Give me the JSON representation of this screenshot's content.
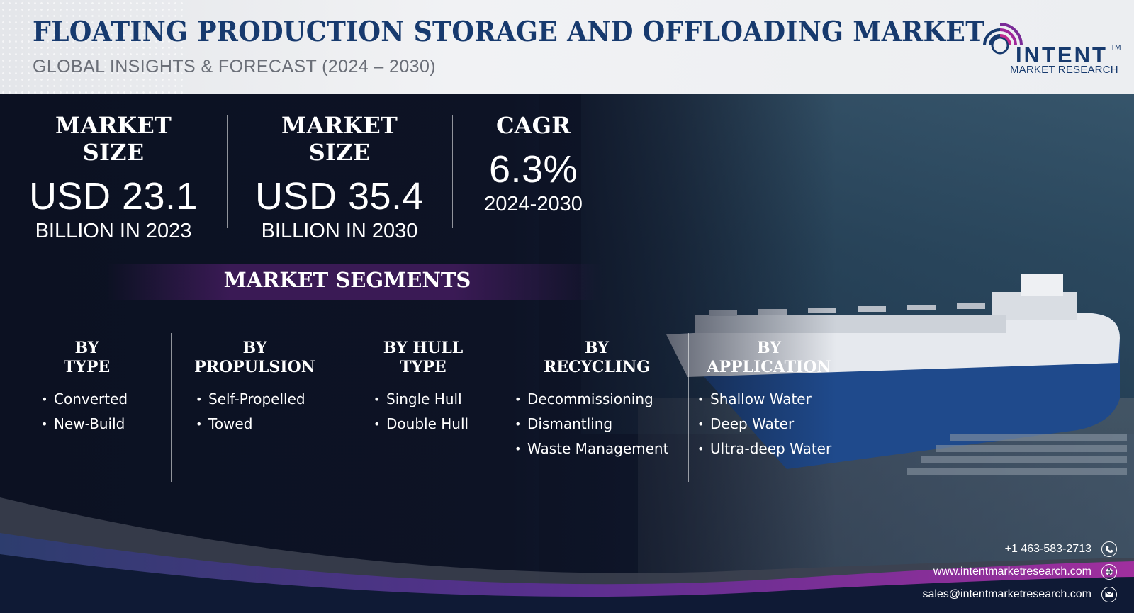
{
  "header": {
    "title": "FLOATING PRODUCTION STORAGE AND OFFLOADING MARKET",
    "subtitle": "GLOBAL INSIGHTS & FORECAST (2024 – 2030)"
  },
  "logo": {
    "name": "INTENT",
    "tm": "TM",
    "sub": "MARKET RESEARCH"
  },
  "stats": [
    {
      "label": "MARKET SIZE",
      "value": "USD 23.1",
      "note": "BILLION IN 2023"
    },
    {
      "label": "MARKET SIZE",
      "value": "USD 35.4",
      "note": "BILLION IN 2030"
    },
    {
      "label": "CAGR",
      "value": "6.3%",
      "note": "2024-2030"
    }
  ],
  "segments": {
    "title": "MARKET SEGMENTS",
    "columns": [
      {
        "heading": "BY\nTYPE",
        "items": [
          "Converted",
          "New-Build"
        ]
      },
      {
        "heading": "BY\nPROPULSION",
        "items": [
          "Self-Propelled",
          "Towed"
        ]
      },
      {
        "heading": "BY HULL\nTYPE",
        "items": [
          "Single Hull",
          "Double Hull"
        ]
      },
      {
        "heading": "BY\nRECYCLING",
        "items": [
          "Decommissioning",
          "Dismantling",
          "Waste Management"
        ]
      },
      {
        "heading": "BY\nAPPLICATION",
        "items": [
          "Shallow Water",
          "Deep Water",
          "Ultra-deep Water"
        ]
      }
    ]
  },
  "contact": {
    "phone": "+1 463-583-2713",
    "website": "www.intentmarketresearch.com",
    "email": "sales@intentmarketresearch.com"
  },
  "icons": {
    "phone": "phone-icon",
    "web": "globe-icon",
    "mail": "envelope-icon"
  },
  "colors": {
    "title": "#173a6e",
    "accent_purple": "#8a2e9e",
    "background": "#0b1020"
  }
}
